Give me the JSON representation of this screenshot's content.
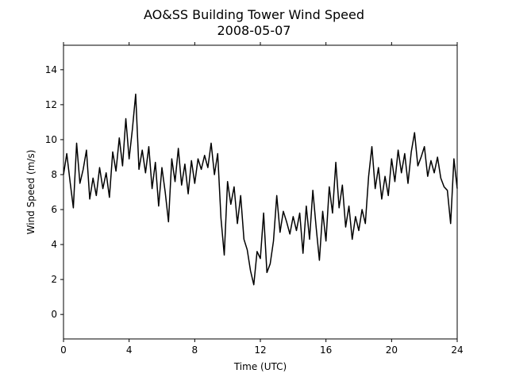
{
  "chart_data": {
    "type": "line",
    "title": "AO&SS Building Tower Wind Speed",
    "subtitle": "2008-05-07",
    "x_label": "Time (UTC)",
    "y_label": "Wind Speed (m/s)",
    "xlim": [
      0,
      24
    ],
    "xticks": [
      0,
      4,
      8,
      12,
      16,
      20,
      24
    ],
    "ylim": [
      -1.4,
      15.4
    ],
    "yticks": [
      0,
      2,
      4,
      6,
      8,
      10,
      12,
      14
    ],
    "series": [
      {
        "color": "#000000",
        "x": [
          0,
          0.2,
          0.4,
          0.6,
          0.8,
          1,
          1.2,
          1.4,
          1.6,
          1.8,
          2,
          2.2,
          2.4,
          2.6,
          2.8,
          3,
          3.2,
          3.4,
          3.6,
          3.8,
          4,
          4.2,
          4.4,
          4.6,
          4.8,
          5,
          5.2,
          5.4,
          5.6,
          5.8,
          6,
          6.2,
          6.4,
          6.6,
          6.8,
          7,
          7.2,
          7.4,
          7.6,
          7.8,
          8,
          8.2,
          8.4,
          8.6,
          8.8,
          9,
          9.2,
          9.4,
          9.6,
          9.8,
          10,
          10.2,
          10.4,
          10.6,
          10.8,
          11,
          11.2,
          11.4,
          11.6,
          11.8,
          12,
          12.2,
          12.4,
          12.6,
          12.8,
          13,
          13.2,
          13.4,
          13.6,
          13.8,
          14,
          14.2,
          14.4,
          14.6,
          14.8,
          15,
          15.2,
          15.4,
          15.6,
          15.8,
          16,
          16.2,
          16.4,
          16.6,
          16.8,
          17,
          17.2,
          17.4,
          17.6,
          17.8,
          18,
          18.2,
          18.4,
          18.6,
          18.8,
          19,
          19.2,
          19.4,
          19.6,
          19.8,
          20,
          20.2,
          20.4,
          20.6,
          20.8,
          21,
          21.2,
          21.4,
          21.6,
          21.8,
          22,
          22.2,
          22.4,
          22.6,
          22.8,
          23,
          23.2,
          23.4,
          23.6,
          23.8,
          24
        ],
        "values": [
          8.0,
          9.2,
          7.6,
          6.1,
          9.8,
          7.5,
          8.3,
          9.4,
          6.6,
          7.8,
          6.8,
          8.4,
          7.2,
          8.1,
          6.7,
          9.3,
          8.2,
          10.1,
          8.5,
          11.2,
          8.9,
          10.6,
          12.6,
          8.3,
          9.4,
          8.1,
          9.6,
          7.2,
          8.7,
          6.2,
          8.4,
          7.0,
          5.3,
          8.9,
          7.6,
          9.5,
          7.4,
          8.6,
          6.9,
          8.8,
          7.5,
          8.9,
          8.3,
          9.1,
          8.4,
          9.8,
          8.0,
          9.2,
          5.5,
          3.4,
          7.6,
          6.3,
          7.3,
          5.2,
          6.8,
          4.3,
          3.7,
          2.5,
          1.7,
          3.6,
          3.2,
          5.8,
          2.4,
          2.9,
          4.2,
          6.8,
          4.7,
          5.9,
          5.3,
          4.6,
          5.6,
          4.8,
          5.8,
          3.5,
          6.2,
          4.3,
          7.1,
          5.0,
          3.1,
          5.9,
          4.2,
          7.3,
          5.8,
          8.7,
          6.1,
          7.4,
          5.0,
          6.2,
          4.3,
          5.6,
          4.8,
          6.0,
          5.2,
          7.9,
          9.6,
          7.2,
          8.4,
          6.6,
          7.9,
          6.8,
          8.9,
          7.6,
          9.4,
          8.1,
          9.2,
          7.5,
          9.3,
          10.4,
          8.5,
          9.0,
          9.6,
          7.9,
          8.8,
          8.1,
          9.0,
          7.8,
          7.3,
          7.1,
          5.2,
          8.9,
          7.2
        ]
      }
    ]
  }
}
